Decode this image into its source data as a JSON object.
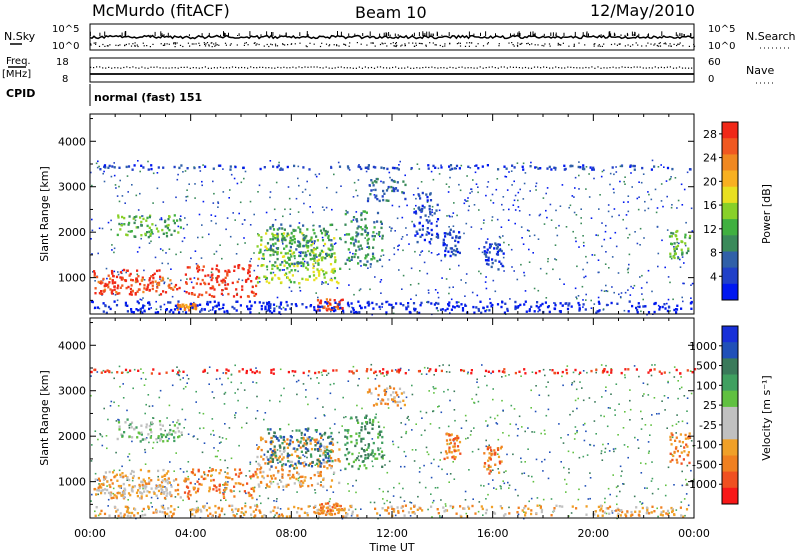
{
  "header": {
    "station": "McMurdo (fitACF)",
    "beam": "Beam 10",
    "date": "12/May/2010"
  },
  "sky_panel": {
    "left_label": "N.Sky",
    "right_label": "N.Search",
    "left_ticks": [
      "10^5",
      "10^0"
    ],
    "right_ticks": [
      "10^5",
      "10^0"
    ]
  },
  "freq_panel": {
    "left_label_1": "Freq.",
    "left_label_2": "[MHz]",
    "right_label": "Nave",
    "left_ticks": [
      "18",
      "8"
    ],
    "right_ticks": [
      "60",
      "0"
    ]
  },
  "cpid": {
    "label": "CPID",
    "value": "normal (fast) 151"
  },
  "chart_data": [
    {
      "type": "heatmap",
      "quantity": "power",
      "xlabel": "Time UT",
      "ylabel": "Slant Range [km]",
      "xlim": [
        0,
        24
      ],
      "ylim": [
        200,
        4600
      ],
      "yticks": [
        1000,
        2000,
        3000,
        4000
      ],
      "xticks": [
        "00:00",
        "04:00",
        "08:00",
        "12:00",
        "16:00",
        "20:00",
        "00:00"
      ],
      "colorbar": {
        "label": "Power [dB]",
        "ticks": [
          "4",
          "8",
          "12",
          "16",
          "20",
          "24",
          "28"
        ],
        "colors": [
          "#0018f0",
          "#2040c8",
          "#3060a8",
          "#3a8a5a",
          "#40b040",
          "#88d028",
          "#e8e020",
          "#f8b020",
          "#f08820",
          "#f05820",
          "#f02818"
        ]
      },
      "regions": [
        {
          "t0": 0.1,
          "t1": 2.8,
          "r0": 650,
          "r1": 1200,
          "level": 10
        },
        {
          "t0": 0.3,
          "t1": 3.6,
          "r0": 700,
          "r1": 1050,
          "level": 9
        },
        {
          "t0": 3.7,
          "t1": 6.6,
          "r0": 600,
          "r1": 1300,
          "level": 10
        },
        {
          "t0": 6.6,
          "t1": 9.9,
          "r0": 900,
          "r1": 2000,
          "level": 5
        },
        {
          "t0": 7.0,
          "t1": 9.6,
          "r0": 1300,
          "r1": 2200,
          "level": 3
        },
        {
          "t0": 9.0,
          "t1": 10.0,
          "r0": 300,
          "r1": 550,
          "level": 9
        },
        {
          "t0": 10.1,
          "t1": 11.6,
          "r0": 1300,
          "r1": 2500,
          "level": 3
        },
        {
          "t0": 11.0,
          "t1": 12.5,
          "r0": 2700,
          "r1": 3200,
          "level": 2
        },
        {
          "t0": 1.0,
          "t1": 3.6,
          "r0": 1900,
          "r1": 2400,
          "level": 4
        },
        {
          "t0": 3.4,
          "t1": 4.2,
          "r0": 300,
          "r1": 450,
          "level": 8
        },
        {
          "t0": 12.8,
          "t1": 13.8,
          "r0": 1800,
          "r1": 2900,
          "level": 1
        },
        {
          "t0": 14.0,
          "t1": 14.7,
          "r0": 1500,
          "r1": 2100,
          "level": 1
        },
        {
          "t0": 15.6,
          "t1": 16.4,
          "r0": 1200,
          "r1": 1800,
          "level": 1
        },
        {
          "t0": 23.0,
          "t1": 23.8,
          "r0": 1400,
          "r1": 2100,
          "level": 4
        },
        {
          "t0": 0.0,
          "t1": 24.0,
          "r0": 250,
          "r1": 500,
          "level": 0
        },
        {
          "t0": 0.0,
          "t1": 24.0,
          "r0": 3400,
          "r1": 3500,
          "level": 1
        }
      ]
    },
    {
      "type": "heatmap",
      "quantity": "velocity",
      "xlabel": "Time UT",
      "ylabel": "Slant Range [km]",
      "xlim": [
        0,
        24
      ],
      "ylim": [
        200,
        4600
      ],
      "yticks": [
        1000,
        2000,
        3000,
        4000
      ],
      "xticks": [
        "00:00",
        "04:00",
        "08:00",
        "12:00",
        "16:00",
        "20:00",
        "00:00"
      ],
      "colorbar": {
        "label": "Velocity [m s⁻¹]",
        "ticks": [
          "1000",
          "500",
          "100",
          "25",
          "-25",
          "-100",
          "-500",
          "-1000"
        ],
        "colors": [
          "#f81818",
          "#f05020",
          "#f08020",
          "#f0a028",
          "#c0c0c0",
          "#c0c0c0",
          "#60c040",
          "#40a060",
          "#3a7a5a",
          "#2050b8",
          "#1830d8"
        ]
      },
      "regions": [
        {
          "t0": 0.1,
          "t1": 3.6,
          "r0": 650,
          "r1": 1300,
          "level": 3
        },
        {
          "t0": 0.3,
          "t1": 3.2,
          "r0": 700,
          "r1": 1050,
          "level": 4
        },
        {
          "t0": 3.7,
          "t1": 6.6,
          "r0": 650,
          "r1": 1300,
          "level": 2
        },
        {
          "t0": 6.6,
          "t1": 9.9,
          "r0": 900,
          "r1": 2000,
          "level": 3
        },
        {
          "t0": 7.0,
          "t1": 9.6,
          "r0": 1300,
          "r1": 2200,
          "level": 8
        },
        {
          "t0": 10.1,
          "t1": 11.6,
          "r0": 1300,
          "r1": 2500,
          "level": 7
        },
        {
          "t0": 11.0,
          "t1": 12.5,
          "r0": 2700,
          "r1": 3200,
          "level": 3
        },
        {
          "t0": 1.0,
          "t1": 3.6,
          "r0": 1900,
          "r1": 2400,
          "level": 6
        },
        {
          "t0": 9.0,
          "t1": 10.0,
          "r0": 300,
          "r1": 550,
          "level": 2
        },
        {
          "t0": 14.0,
          "t1": 14.7,
          "r0": 1500,
          "r1": 2100,
          "level": 2
        },
        {
          "t0": 15.6,
          "t1": 16.4,
          "r0": 1200,
          "r1": 1800,
          "level": 2
        },
        {
          "t0": 23.0,
          "t1": 23.8,
          "r0": 1400,
          "r1": 2100,
          "level": 2
        },
        {
          "t0": 0.0,
          "t1": 24.0,
          "r0": 250,
          "r1": 500,
          "level": 3
        },
        {
          "t0": 0.0,
          "t1": 24.0,
          "r0": 3400,
          "r1": 3500,
          "level": 0
        }
      ]
    }
  ]
}
